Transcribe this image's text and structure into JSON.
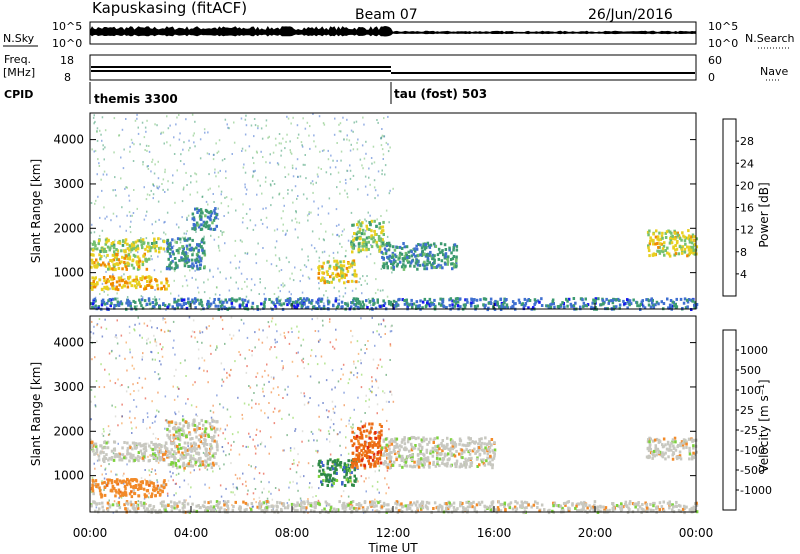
{
  "header": {
    "station": "Kapuskasing (fitACF)",
    "beam": "Beam 07",
    "date": "26/Jun/2016"
  },
  "top_panels": {
    "nsky_label": "N.Sky",
    "nsky_ticks": [
      "10^5",
      "10^0"
    ],
    "nsearch_label": "N.Search",
    "nsearch_ticks": [
      "10^5",
      "10^0"
    ],
    "freq_label": "Freq.",
    "freq_unit": "[MHz]",
    "freq_ticks": [
      "18",
      "8"
    ],
    "nave_label": "Nave",
    "nave_ticks": [
      "60",
      "0"
    ],
    "cpid_label": "CPID",
    "cpid_segments": [
      {
        "name": "themis",
        "id": "3300",
        "start_hour": 0,
        "end_hour": 12
      },
      {
        "name": "tau (fost)",
        "id": "503",
        "start_hour": 12,
        "end_hour": 24
      }
    ]
  },
  "x_axis": {
    "label": "Time UT",
    "ticks": [
      "00:00",
      "04:00",
      "08:00",
      "12:00",
      "16:00",
      "20:00",
      "00:00"
    ]
  },
  "panels": {
    "power": {
      "ylabel": "Slant Range [km]",
      "yticks": [
        "4000",
        "3000",
        "2000",
        "1000"
      ],
      "cbar_label": "Power [dB]",
      "cbar_ticks": [
        "28",
        "24",
        "20",
        "16",
        "12",
        "8",
        "4"
      ]
    },
    "velocity": {
      "ylabel": "Slant Range [km]",
      "yticks": [
        "4000",
        "3000",
        "2000",
        "1000"
      ],
      "cbar_label": "Velocity [m s⁻¹]",
      "cbar_ticks": [
        "1000",
        "500",
        "100",
        "25",
        "-25",
        "-100",
        "-500",
        "-1000"
      ]
    }
  },
  "chart_data": [
    {
      "type": "heatmap",
      "title": "Power",
      "xlabel": "Time UT",
      "ylabel": "Slant Range [km]",
      "xlim_hours": [
        0,
        24
      ],
      "ylim": [
        180,
        4600
      ],
      "colorbar": {
        "label": "Power [dB]",
        "range": [
          0,
          32
        ],
        "colors": [
          "#1515ee",
          "#3f6fd0",
          "#3c9a70",
          "#74c070",
          "#e8d020",
          "#f08a00",
          "#ee2a00"
        ]
      },
      "regions": [
        {
          "t0": 0.0,
          "t1": 2.9,
          "r0": 1500,
          "r1": 1800,
          "level": 18
        },
        {
          "t0": 0.0,
          "t1": 2.3,
          "r0": 1100,
          "r1": 1450,
          "level": 22
        },
        {
          "t0": 0.0,
          "t1": 3.1,
          "r0": 650,
          "r1": 950,
          "level": 24
        },
        {
          "t0": 3.0,
          "t1": 4.5,
          "r0": 1100,
          "r1": 1800,
          "level": 9
        },
        {
          "t0": 4.0,
          "t1": 5.0,
          "r0": 2000,
          "r1": 2500,
          "level": 9
        },
        {
          "t0": 9.0,
          "t1": 10.5,
          "r0": 800,
          "r1": 1300,
          "level": 22
        },
        {
          "t0": 10.3,
          "t1": 11.6,
          "r0": 1500,
          "r1": 2200,
          "level": 17
        },
        {
          "t0": 11.5,
          "t1": 14.5,
          "r0": 1100,
          "r1": 1700,
          "level": 10
        },
        {
          "t0": 22.0,
          "t1": 24.0,
          "r0": 1400,
          "r1": 2000,
          "level": 20
        },
        {
          "t0": 0.0,
          "t1": 24.0,
          "r0": 200,
          "r1": 450,
          "level": 7
        }
      ]
    },
    {
      "type": "heatmap",
      "title": "Velocity",
      "xlabel": "Time UT",
      "ylabel": "Slant Range [km]",
      "xlim_hours": [
        0,
        24
      ],
      "ylim": [
        180,
        4600
      ],
      "colorbar": {
        "label": "Velocity [m s⁻¹]",
        "range": [
          -1200,
          1200
        ],
        "colors": [
          "#1f3fb0",
          "#3f66c8",
          "#2f8a46",
          "#7cd23c",
          "#c8c8c0",
          "#f28a28",
          "#ec6a12",
          "#e02a10"
        ]
      },
      "regions": [
        {
          "t0": 0.0,
          "t1": 3.0,
          "r0": 1350,
          "r1": 1800,
          "velocity": 0
        },
        {
          "t0": 0.0,
          "t1": 3.0,
          "r0": 550,
          "r1": 950,
          "velocity": -150
        },
        {
          "t0": 3.0,
          "t1": 5.0,
          "r0": 1200,
          "r1": 2300,
          "velocity": 0
        },
        {
          "t0": 9.0,
          "t1": 10.5,
          "r0": 800,
          "r1": 1400,
          "velocity": 200
        },
        {
          "t0": 10.3,
          "t1": 11.5,
          "r0": 1200,
          "r1": 2200,
          "velocity": -300
        },
        {
          "t0": 11.5,
          "t1": 16.0,
          "r0": 1200,
          "r1": 1900,
          "velocity": 0
        },
        {
          "t0": 22.0,
          "t1": 24.0,
          "r0": 1400,
          "r1": 1900,
          "velocity": 0
        },
        {
          "t0": 0.0,
          "t1": 24.0,
          "r0": 200,
          "r1": 450,
          "velocity": 0
        }
      ]
    }
  ]
}
